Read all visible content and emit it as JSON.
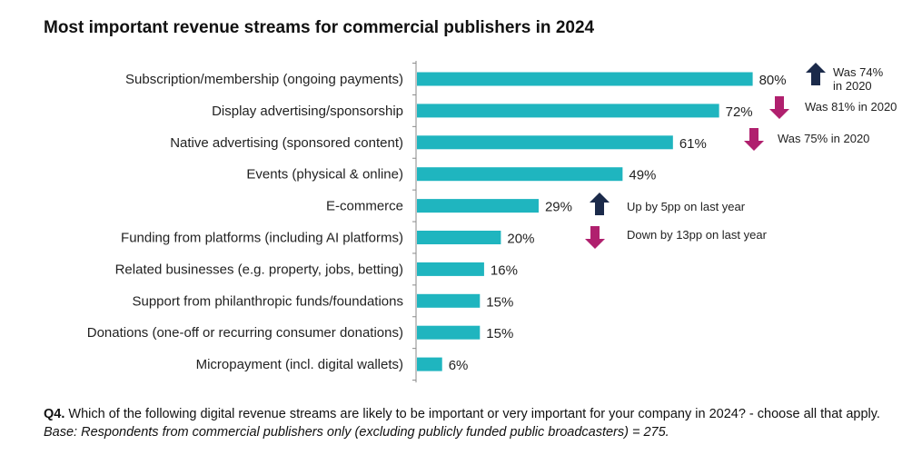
{
  "chart_data": {
    "type": "bar",
    "orientation": "horizontal",
    "title": "Most important revenue streams for commercial publishers in 2024",
    "categories": [
      "Subscription/membership (ongoing payments)",
      "Display advertising/sponsorship",
      "Native advertising (sponsored content)",
      "Events (physical & online)",
      "E-commerce",
      "Funding from platforms (including AI platforms)",
      "Related businesses (e.g. property, jobs, betting)",
      "Support from philanthropic funds/foundations",
      "Donations (one-off or recurring consumer donations)",
      "Micropayment (incl. digital wallets)"
    ],
    "values": [
      80,
      72,
      61,
      49,
      29,
      20,
      16,
      15,
      15,
      6
    ],
    "value_labels": [
      "80%",
      "72%",
      "61%",
      "49%",
      "29%",
      "20%",
      "16%",
      "15%",
      "15%",
      "6%"
    ],
    "xlim": [
      0,
      100
    ],
    "bar_color": "#1fb5bf",
    "annotations": [
      {
        "category_index": 0,
        "direction": "up",
        "lines": [
          "Was 74%",
          "in 2020"
        ]
      },
      {
        "category_index": 1,
        "direction": "down",
        "lines": [
          "Was 81% in 2020"
        ]
      },
      {
        "category_index": 2,
        "direction": "down",
        "lines": [
          "Was 75% in 2020"
        ]
      },
      {
        "category_index": 4,
        "direction": "up",
        "lines": [
          "Up by 5pp on last year"
        ]
      },
      {
        "category_index": 5,
        "direction": "down",
        "lines": [
          "Down by 13pp on last year"
        ]
      }
    ],
    "up_color": "#1b2a4a",
    "down_color": "#b0206e"
  },
  "footnote": {
    "question_id": "Q4.",
    "question": " Which of the following digital revenue streams are likely to be important or very important for your company in 2024? - choose all that apply. ",
    "base": "Base: Respondents from commercial publishers only (excluding publicly funded public broadcasters) = 275."
  }
}
